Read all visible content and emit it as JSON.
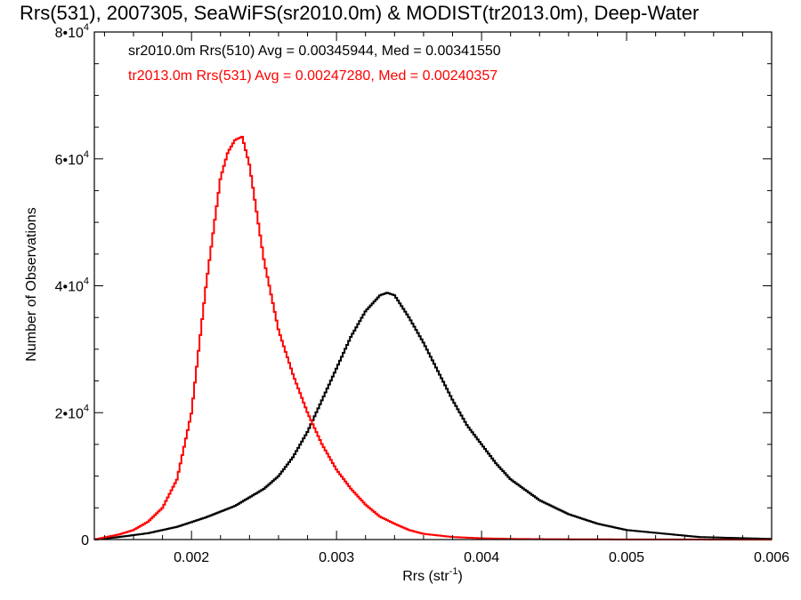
{
  "colors": {
    "background": "#ffffff",
    "axes": "#000000"
  },
  "chart_data": {
    "type": "line",
    "title": "Rrs(531), 2007305, SeaWiFS(sr2010.0m) & MODIST(tr2013.0m), Deep-Water",
    "xlabel": "Rrs (str⁻¹)",
    "ylabel": "Number of Observations",
    "xlim": [
      0.00133,
      0.006
    ],
    "ylim": [
      0,
      80000
    ],
    "x_tick_values": [
      0.002,
      0.003,
      0.004,
      0.005,
      0.006
    ],
    "x_tick_labels": [
      "0.002",
      "0.003",
      "0.004",
      "0.005",
      "0.006"
    ],
    "y_tick_values": [
      0,
      20000,
      40000,
      60000,
      80000
    ],
    "y_tick_labels": [
      {
        "mantissa": "0",
        "exp": ""
      },
      {
        "mantissa": "2•10",
        "exp": "4"
      },
      {
        "mantissa": "4•10",
        "exp": "4"
      },
      {
        "mantissa": "6•10",
        "exp": "4"
      },
      {
        "mantissa": "8•10",
        "exp": "4"
      }
    ],
    "grid": false,
    "legend_position": "top-left",
    "series": [
      {
        "legend": "sr2010.0m Rrs(510) Avg = 0.00345944, Med = 0.00341550",
        "color": "#000000",
        "x": [
          0.00133,
          0.0015,
          0.0017,
          0.0019,
          0.0021,
          0.0023,
          0.0025,
          0.0026,
          0.0027,
          0.0028,
          0.0029,
          0.003,
          0.0031,
          0.0032,
          0.0033,
          0.00335,
          0.0034,
          0.0035,
          0.0036,
          0.0037,
          0.0038,
          0.0039,
          0.004,
          0.0041,
          0.0042,
          0.0044,
          0.0046,
          0.0048,
          0.005,
          0.0055,
          0.006
        ],
        "y": [
          0,
          400,
          1000,
          2000,
          3500,
          5300,
          8000,
          10000,
          13000,
          17000,
          22000,
          27000,
          32000,
          36000,
          38500,
          38900,
          38500,
          35000,
          31000,
          26500,
          22000,
          18000,
          15000,
          12000,
          9500,
          6200,
          4000,
          2500,
          1500,
          400,
          100
        ]
      },
      {
        "legend": "tr2013.0m Rrs(531) Avg = 0.00247280, Med = 0.00240357",
        "color": "#ff0000",
        "x": [
          0.00133,
          0.0015,
          0.0016,
          0.0017,
          0.0018,
          0.0019,
          0.002,
          0.0021,
          0.0022,
          0.00225,
          0.0023,
          0.00235,
          0.0024,
          0.0025,
          0.0026,
          0.0027,
          0.0028,
          0.0029,
          0.003,
          0.0031,
          0.0032,
          0.0033,
          0.0034,
          0.0035,
          0.0036,
          0.0038,
          0.004,
          0.0042,
          0.0045,
          0.005,
          0.006
        ],
        "y": [
          0,
          800,
          1500,
          2800,
          5000,
          9500,
          20000,
          40000,
          57000,
          61000,
          63000,
          63500,
          59000,
          44000,
          33000,
          26000,
          20000,
          15000,
          11000,
          8000,
          5500,
          3600,
          2500,
          1500,
          900,
          400,
          200,
          100,
          50,
          20,
          0
        ]
      }
    ]
  }
}
